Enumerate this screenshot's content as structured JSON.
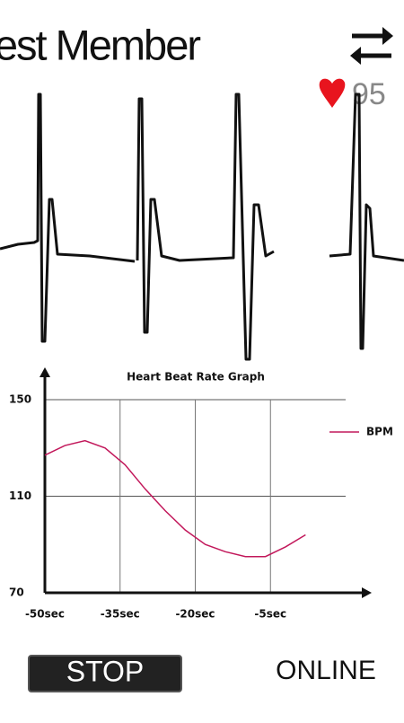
{
  "header": {
    "title": "Test Member",
    "heart_rate": 95
  },
  "chart_data": {
    "type": "line",
    "title": "Heart Beat Rate Graph",
    "x": [
      -50,
      -46,
      -42,
      -38,
      -34,
      -30,
      -26,
      -22,
      -18,
      -14,
      -10,
      -6,
      -2,
      2
    ],
    "series": [
      {
        "name": "BPM",
        "color": "#c2185b",
        "values": [
          127,
          131,
          133,
          130,
          123,
          113,
          104,
          96,
          90,
          87,
          85,
          85,
          89,
          94
        ]
      }
    ],
    "xlim": [
      -50,
      10
    ],
    "xticks": [
      {
        "value": -50,
        "label": "-50sec"
      },
      {
        "value": -35,
        "label": "-35sec"
      },
      {
        "value": -20,
        "label": "-20sec"
      },
      {
        "value": -5,
        "label": "-5sec"
      }
    ],
    "ylim": [
      70,
      150
    ],
    "yticks": [
      70,
      110,
      150
    ],
    "grid": true,
    "legend": "right"
  },
  "controls": {
    "stop": "STOP",
    "status": "ONLINE"
  }
}
